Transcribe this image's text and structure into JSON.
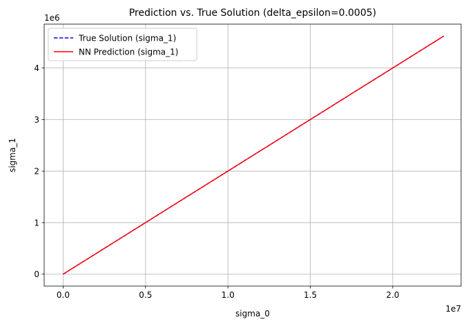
{
  "chart_data": {
    "type": "line",
    "title": "Prediction vs. True Solution (delta_epsilon=0.0005)",
    "xlabel": "sigma_0",
    "ylabel": "sigma_1",
    "x_offset_label": "1e7",
    "y_offset_label": "1e6",
    "xlim": [
      -0.115,
      2.415
    ],
    "ylim": [
      -0.231,
      4.851
    ],
    "x_ticks": [
      0.0,
      0.5,
      1.0,
      1.5,
      2.0
    ],
    "x_tick_labels": [
      "0.0",
      "0.5",
      "1.0",
      "1.5",
      "2.0"
    ],
    "y_ticks": [
      0,
      1,
      2,
      3,
      4
    ],
    "y_tick_labels": [
      "0",
      "1",
      "2",
      "3",
      "4"
    ],
    "grid": true,
    "legend_position": "top-left",
    "series": [
      {
        "name": "True Solution (sigma_1)",
        "color": "#0000ff",
        "style": "dashed",
        "x": [
          0.0,
          2.31
        ],
        "y": [
          0.0,
          4.62
        ]
      },
      {
        "name": "NN Prediction (sigma_1)",
        "color": "#ff0000",
        "style": "solid",
        "x": [
          0.0,
          2.31
        ],
        "y": [
          0.0,
          4.62
        ]
      }
    ]
  }
}
